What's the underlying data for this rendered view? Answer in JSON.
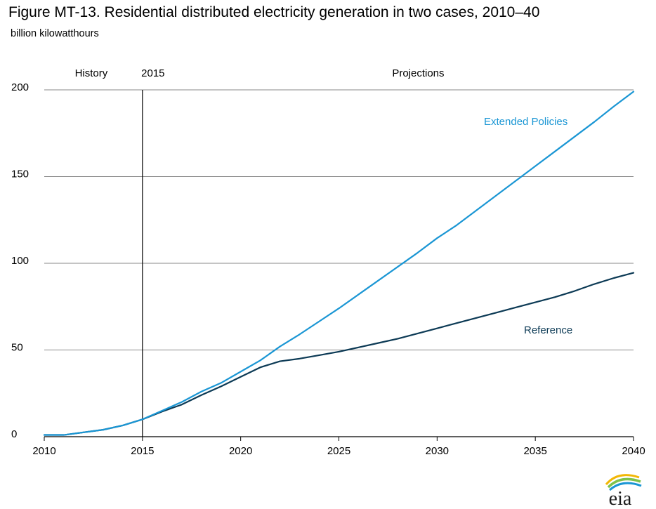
{
  "figure": {
    "title": "Figure MT-13. Residential distributed electricity generation in two cases, 2010–40",
    "units": "billion kilowatthours"
  },
  "annotations": {
    "history": "History",
    "year_marker": "2015",
    "projections": "Projections"
  },
  "logo": {
    "text": "eia"
  },
  "colors": {
    "extended": "#1a96d4",
    "reference": "#0c3a55",
    "grid": "#8a8a8a",
    "divider": "#000000"
  },
  "chart_data": {
    "type": "line",
    "title": "Figure MT-13. Residential distributed electricity generation in two cases, 2010–40",
    "xlabel": "",
    "ylabel": "billion kilowatthours",
    "xlim": [
      2010,
      2040
    ],
    "ylim": [
      0,
      200
    ],
    "x_ticks": [
      2010,
      2015,
      2020,
      2025,
      2030,
      2035,
      2040
    ],
    "y_ticks": [
      0,
      50,
      100,
      150,
      200
    ],
    "grid": "horizontal",
    "divider_year": 2015,
    "x": [
      2010,
      2011,
      2012,
      2013,
      2014,
      2015,
      2016,
      2017,
      2018,
      2019,
      2020,
      2021,
      2022,
      2023,
      2024,
      2025,
      2026,
      2027,
      2028,
      2029,
      2030,
      2031,
      2032,
      2033,
      2034,
      2035,
      2036,
      2037,
      2038,
      2039,
      2040
    ],
    "series": [
      {
        "name": "Extended Policies",
        "values": [
          1,
          1,
          2.5,
          4,
          6.5,
          10,
          15,
          20,
          26,
          31,
          37.5,
          44,
          52,
          59,
          66.5,
          74,
          82,
          90,
          98,
          106,
          114.5,
          122,
          130.5,
          139,
          147.5,
          156,
          164.5,
          173,
          181.5,
          190.5,
          199
        ]
      },
      {
        "name": "Reference",
        "values": [
          1,
          1,
          2.5,
          4,
          6.5,
          10,
          14.5,
          18.5,
          24,
          29,
          34.5,
          40,
          43.5,
          45,
          47,
          49,
          51.5,
          54,
          56.5,
          59.5,
          62.5,
          65.5,
          68.5,
          71.5,
          74.5,
          77.5,
          80.5,
          84,
          88,
          91.5,
          94.5
        ]
      }
    ]
  }
}
